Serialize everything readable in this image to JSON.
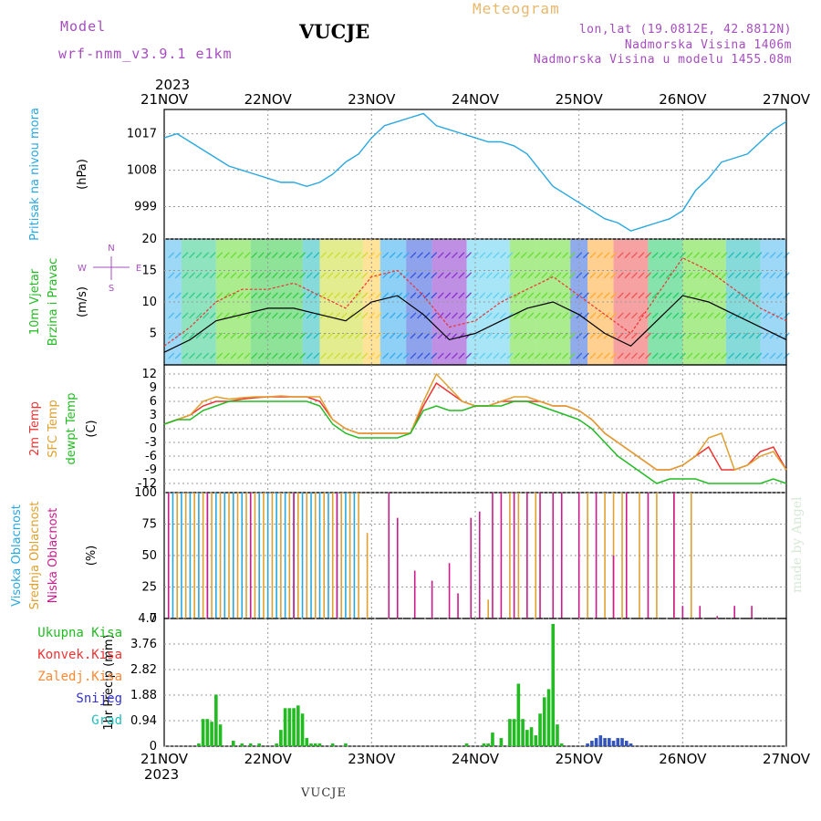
{
  "header": {
    "model_label": "Model",
    "model_name": "wrf-nmm_v3.9.1  e1km",
    "station": "VUCJE",
    "title": "Meteogram",
    "lonlat": "lon,lat (19.0812E, 42.8812N)",
    "elevation": "Nadmorska Visina 1406m",
    "model_elevation": "Nadmorska Visina u modelu 1455.08m",
    "year": "2023"
  },
  "footer": {
    "station": "VUCJE",
    "credit": "made by Angel",
    "year": "2023"
  },
  "date_ticks": [
    "21NOV",
    "22NOV",
    "23NOV",
    "24NOV",
    "25NOV",
    "26NOV",
    "27NOV"
  ],
  "panels": {
    "pressure": {
      "label": "Pritisak na nivou mora",
      "unit": "(hPa)",
      "ticks": [
        "999",
        "1008",
        "1017"
      ]
    },
    "wind": {
      "label1": "10m Vjetar",
      "label2": "Brzina i Pravac",
      "unit": "(m/s)",
      "ticks": [
        "5",
        "10",
        "15",
        "20"
      ],
      "compass": {
        "n": "N",
        "s": "S",
        "e": "E",
        "w": "W"
      }
    },
    "temp": {
      "label1": "2m Temp",
      "label2": "SFC Temp",
      "label3": "dewpt Temp",
      "unit": "(C)",
      "ticks": [
        "-12",
        "-9",
        "-6",
        "-3",
        "0",
        "3",
        "6",
        "9",
        "12"
      ]
    },
    "cloud": {
      "label1": "Visoka Oblacnost",
      "label2": "Srednja Oblacnost",
      "label3": "Niska Oblacnost",
      "unit": "(%)",
      "ticks": [
        "0",
        "25",
        "50",
        "75",
        "100"
      ]
    },
    "precip": {
      "unit": "1hr Precip (mm)",
      "ticks": [
        "0",
        "0.94",
        "1.88",
        "2.82",
        "3.76",
        "4.7"
      ],
      "legend": [
        {
          "label": "Ukupna Kisa",
          "color": "#22bb22"
        },
        {
          "label": "Konvek.Kisa",
          "color": "#ee3333"
        },
        {
          "label": "Zaledj.Kisa",
          "color": "#ff8833"
        },
        {
          "label": "Snijeg",
          "color": "#3333cc"
        },
        {
          "label": "Grad",
          "color": "#22bbbb"
        }
      ]
    }
  },
  "colors": {
    "pressure": "#29a8e0",
    "t2m": "#ee3333",
    "sfc": "#e0a030",
    "dew": "#22bb22",
    "high": "#29a8e0",
    "mid": "#e0a030",
    "low": "#cc1a8a",
    "wind_speed": "#000000",
    "wind_gust": "#ee3333"
  },
  "chart_data": [
    {
      "type": "line",
      "title": "Pritisak na nivou mora",
      "ylabel": "(hPa)",
      "x_unit": "hours from 21NOV 00 UTC",
      "ylim": [
        991,
        1023
      ],
      "x": [
        0,
        3,
        6,
        9,
        12,
        15,
        18,
        21,
        24,
        27,
        30,
        33,
        36,
        39,
        42,
        45,
        48,
        51,
        54,
        57,
        60,
        63,
        66,
        69,
        72,
        75,
        78,
        81,
        84,
        87,
        90,
        93,
        96,
        99,
        102,
        105,
        108,
        111,
        114,
        117,
        120,
        123,
        126,
        129,
        132,
        135,
        138,
        141,
        144
      ],
      "values": [
        1016,
        1017,
        1015,
        1013,
        1011,
        1009,
        1008,
        1007,
        1006,
        1005,
        1005,
        1004,
        1005,
        1007,
        1010,
        1012,
        1016,
        1019,
        1020,
        1021,
        1022,
        1019,
        1018,
        1017,
        1016,
        1015,
        1015,
        1014,
        1012,
        1008,
        1004,
        1002,
        1000,
        998,
        996,
        995,
        993,
        994,
        995,
        996,
        998,
        1003,
        1006,
        1010,
        1011,
        1012,
        1015,
        1018,
        1020
      ]
    },
    {
      "type": "line",
      "title": "10m Vjetar Brzina i Pravac",
      "ylabel": "(m/s)",
      "ylim": [
        0,
        20
      ],
      "x": [
        0,
        6,
        12,
        18,
        24,
        30,
        36,
        42,
        48,
        54,
        60,
        66,
        72,
        78,
        84,
        90,
        96,
        102,
        108,
        114,
        120,
        126,
        132,
        138,
        144
      ],
      "series": [
        {
          "name": "speed",
          "values": [
            2,
            4,
            7,
            8,
            9,
            9,
            8,
            7,
            10,
            11,
            8,
            4,
            5,
            7,
            9,
            10,
            8,
            5,
            3,
            7,
            11,
            10,
            8,
            6,
            4
          ]
        },
        {
          "name": "gust",
          "values": [
            3,
            6,
            10,
            12,
            12,
            13,
            11,
            9,
            14,
            15,
            11,
            6,
            7,
            10,
            12,
            14,
            11,
            8,
            5,
            11,
            17,
            15,
            12,
            9,
            7
          ]
        }
      ]
    },
    {
      "type": "line",
      "title": "Temperature",
      "ylabel": "(C)",
      "ylim": [
        -14,
        14
      ],
      "x": [
        0,
        3,
        6,
        9,
        12,
        15,
        18,
        21,
        24,
        27,
        30,
        33,
        36,
        39,
        42,
        45,
        48,
        51,
        54,
        57,
        60,
        63,
        66,
        69,
        72,
        75,
        78,
        81,
        84,
        87,
        90,
        93,
        96,
        99,
        102,
        105,
        108,
        111,
        114,
        117,
        120,
        123,
        126,
        129,
        132,
        135,
        138,
        141,
        144
      ],
      "series": [
        {
          "name": "2m Temp",
          "values": [
            1,
            2,
            3,
            5,
            6,
            6,
            6.5,
            6.8,
            7,
            7,
            7,
            7,
            6,
            2,
            0,
            -1,
            -1,
            -1,
            -1,
            -1,
            5,
            10,
            8,
            6,
            5,
            5,
            6,
            6,
            6,
            6,
            5,
            5,
            4,
            2,
            -1,
            -3,
            -5,
            -7,
            -9,
            -9,
            -8,
            -6,
            -4,
            -9,
            -9,
            -8,
            -5,
            -4,
            -9
          ]
        },
        {
          "name": "SFC Temp",
          "values": [
            1,
            2,
            3,
            6,
            7,
            6.5,
            6.8,
            7,
            7,
            7.2,
            7,
            7,
            7,
            2,
            0,
            -1,
            -1,
            -1,
            -1,
            -1,
            6,
            12,
            9,
            6,
            5,
            5,
            6,
            7,
            7,
            6,
            5,
            5,
            4,
            2,
            -1,
            -3,
            -5,
            -7,
            -9,
            -9,
            -8,
            -6,
            -2,
            -1,
            -9,
            -8,
            -6,
            -5,
            -9
          ]
        },
        {
          "name": "dewpt Temp",
          "values": [
            1,
            2,
            2,
            4,
            5,
            6,
            6,
            6,
            6,
            6,
            6,
            6,
            5,
            1,
            -1,
            -2,
            -2,
            -2,
            -2,
            -1,
            4,
            5,
            4,
            4,
            5,
            5,
            5,
            6,
            6,
            5,
            4,
            3,
            2,
            0,
            -3,
            -6,
            -8,
            -10,
            -12,
            -11,
            -11,
            -11,
            -12,
            -12,
            -12,
            -12,
            -12,
            -11,
            -12
          ]
        }
      ]
    },
    {
      "type": "bar",
      "title": "Oblacnost",
      "ylabel": "(%)",
      "ylim": [
        0,
        100
      ],
      "series": [
        {
          "name": "Visoka Oblacnost",
          "x": [
            2,
            4,
            6,
            8,
            10,
            12,
            14,
            16,
            18,
            20,
            22,
            24,
            26,
            28,
            30,
            32,
            34,
            36,
            38,
            40,
            42,
            44
          ],
          "values": [
            100,
            100,
            100,
            100,
            100,
            100,
            100,
            100,
            100,
            100,
            100,
            100,
            100,
            100,
            100,
            100,
            100,
            100,
            100,
            100,
            100,
            100
          ]
        },
        {
          "name": "Srednja Oblacnost",
          "x": [
            3,
            5,
            7,
            9,
            11,
            13,
            15,
            17,
            19,
            21,
            23,
            25,
            27,
            29,
            31,
            33,
            35,
            37,
            39,
            41,
            43,
            45,
            47,
            75,
            80,
            82,
            86,
            98,
            102,
            104,
            106,
            110,
            114,
            118,
            122
          ],
          "values": [
            100,
            100,
            100,
            100,
            100,
            100,
            100,
            100,
            100,
            100,
            100,
            100,
            100,
            100,
            100,
            100,
            100,
            100,
            100,
            100,
            100,
            100,
            68,
            15,
            100,
            100,
            100,
            100,
            100,
            100,
            100,
            100,
            100,
            100,
            100
          ]
        },
        {
          "name": "Niska Oblacnost",
          "x": [
            1,
            10,
            20,
            30,
            40,
            52,
            54,
            58,
            62,
            66,
            68,
            71,
            73,
            76,
            78,
            81,
            84,
            87,
            90,
            92,
            96,
            100,
            104,
            107,
            112,
            118,
            120,
            124,
            128,
            132,
            136
          ],
          "values": [
            100,
            100,
            100,
            100,
            100,
            100,
            80,
            38,
            30,
            44,
            20,
            80,
            85,
            100,
            100,
            100,
            100,
            100,
            100,
            100,
            100,
            100,
            50,
            100,
            100,
            100,
            10,
            10,
            2,
            10,
            10
          ]
        }
      ]
    },
    {
      "type": "bar",
      "title": "1hr Precip",
      "ylabel": "1hr Precip (mm)",
      "ylim": [
        0,
        4.7
      ],
      "series": [
        {
          "name": "Ukupna Kisa",
          "x": [
            8,
            9,
            10,
            11,
            12,
            13,
            16,
            18,
            20,
            22,
            26,
            27,
            28,
            29,
            30,
            31,
            32,
            33,
            34,
            35,
            36,
            39,
            42,
            70,
            74,
            75,
            76,
            78,
            80,
            81,
            82,
            83,
            84,
            85,
            86,
            87,
            88,
            89,
            90,
            91,
            92
          ],
          "values": [
            0.1,
            1.0,
            1.0,
            0.9,
            1.9,
            0.8,
            0.2,
            0.1,
            0.1,
            0.1,
            0.1,
            0.6,
            1.4,
            1.4,
            1.4,
            1.5,
            1.2,
            0.3,
            0.1,
            0.1,
            0.1,
            0.1,
            0.1,
            0.1,
            0.1,
            0.1,
            0.5,
            0.3,
            1.0,
            1.0,
            2.3,
            1.0,
            0.6,
            0.7,
            0.4,
            1.2,
            1.8,
            2.1,
            4.5,
            0.8,
            0.1
          ]
        },
        {
          "name": "Snijeg",
          "x": [
            98,
            99,
            100,
            101,
            102,
            103,
            104,
            105,
            106,
            107,
            108
          ],
          "values": [
            0.1,
            0.2,
            0.3,
            0.4,
            0.3,
            0.3,
            0.2,
            0.3,
            0.3,
            0.2,
            0.1
          ]
        }
      ]
    }
  ]
}
